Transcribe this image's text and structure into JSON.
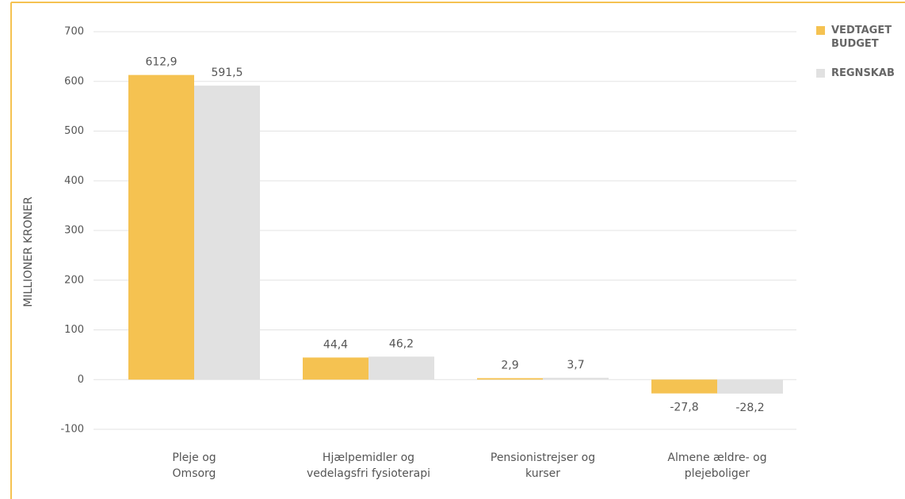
{
  "chart_data": {
    "type": "bar",
    "y_label": "MILLIONER KRONER",
    "categories": [
      [
        "Pleje og",
        "Omsorg"
      ],
      [
        "Hjælpemidler og",
        "vedelagsfri fysioterapi"
      ],
      [
        "Pensionistrejser og",
        "kurser"
      ],
      [
        "Almene ældre- og",
        "plejeboliger"
      ]
    ],
    "series": [
      {
        "name": "VEDTAGET BUDGET",
        "color": "#f5c251",
        "values": [
          612.9,
          44.4,
          2.9,
          -27.8
        ],
        "value_labels": [
          "612,9",
          "44,4",
          "2,9",
          "-27,8"
        ]
      },
      {
        "name": "REGNSKAB",
        "color": "#e1e1e1",
        "values": [
          591.5,
          46.2,
          3.7,
          -28.2
        ],
        "value_labels": [
          "591,5",
          "46,2",
          "3,7",
          "-28,2"
        ]
      }
    ],
    "ylim": [
      -100,
      700
    ],
    "yticks": [
      -100,
      0,
      100,
      200,
      300,
      400,
      500,
      600,
      700
    ],
    "grid": true,
    "legend": "top-right"
  }
}
